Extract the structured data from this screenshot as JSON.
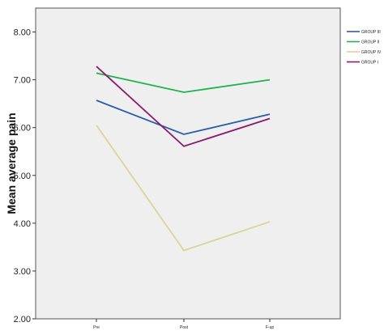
{
  "chart_data": {
    "type": "line",
    "ylabel": "Mean average pain",
    "xlabel": "",
    "categories": [
      "Pre",
      "Post",
      "F-up"
    ],
    "ylim": [
      2.0,
      8.5
    ],
    "yticks": [
      "2.00",
      "3.00",
      "4.00",
      "5.00",
      "6.00",
      "7.00",
      "8.00"
    ],
    "ytick_values": [
      2,
      3,
      4,
      5,
      6,
      7,
      8
    ],
    "grid": false,
    "legend_position": "top-right",
    "background": "#efefef",
    "series": [
      {
        "name": "GROUP III",
        "color": "#2a5caa",
        "values": [
          6.57,
          5.86,
          6.28
        ]
      },
      {
        "name": "GROUP II",
        "color": "#22b24c",
        "values": [
          7.14,
          6.74,
          7.0
        ]
      },
      {
        "name": "GROUP IV",
        "color": "#d8d49c",
        "values": [
          6.05,
          3.43,
          4.03
        ]
      },
      {
        "name": "GROUP I",
        "color": "#8b1a6e",
        "values": [
          7.28,
          5.61,
          6.19
        ]
      }
    ]
  }
}
